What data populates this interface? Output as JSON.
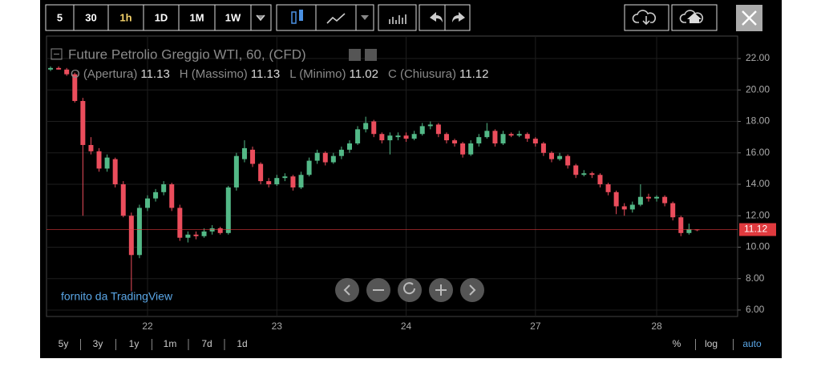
{
  "toolbar": {
    "intervals": [
      "5",
      "30",
      "1h",
      "1D",
      "1M",
      "1W"
    ]
  },
  "chart_data": {
    "type": "candlestick",
    "title": "Future Petrolio Greggio WTI, 60, (CFD)",
    "legend": [
      {
        "label": "O (Apertura)",
        "value": 11.13
      },
      {
        "label": "H (Massimo)",
        "value": 11.13
      },
      {
        "label": "L (Minimo)",
        "value": 11.02
      },
      {
        "label": "C (Chiusura)",
        "value": 11.12
      }
    ],
    "categories": [
      null,
      null,
      null,
      null,
      null,
      null,
      null,
      null,
      null,
      null,
      null,
      null,
      "22",
      null,
      null,
      null,
      null,
      null,
      null,
      null,
      null,
      null,
      null,
      null,
      null,
      null,
      null,
      null,
      "23",
      null,
      null,
      null,
      null,
      null,
      null,
      null,
      null,
      null,
      null,
      null,
      null,
      null,
      null,
      null,
      "24",
      null,
      null,
      null,
      null,
      null,
      null,
      null,
      null,
      null,
      null,
      null,
      null,
      null,
      null,
      null,
      "27",
      null,
      null,
      null,
      null,
      null,
      null,
      null,
      null,
      null,
      null,
      null,
      null,
      null,
      null,
      "28",
      null,
      null,
      null,
      null,
      null
    ],
    "open": [
      21.3,
      21.4,
      21.3,
      21.0,
      19.3,
      16.5,
      16.1,
      15.0,
      15.6,
      14.0,
      12.0,
      9.5,
      12.5,
      13.1,
      13.5,
      14.0,
      12.5,
      10.6,
      10.8,
      10.7,
      11.0,
      11.2,
      10.9,
      13.8,
      15.6,
      16.2,
      15.3,
      14.2,
      14.0,
      14.4,
      14.5,
      13.8,
      14.6,
      15.5,
      16.0,
      15.4,
      15.8,
      16.2,
      16.6,
      17.5,
      18.0,
      17.2,
      16.8,
      17.0,
      17.1,
      16.9,
      17.2,
      17.7,
      17.8,
      17.2,
      16.8,
      16.6,
      15.9,
      16.6,
      17.0,
      17.4,
      16.6,
      17.2,
      17.1,
      17.2,
      16.9,
      16.6,
      16.0,
      15.6,
      15.8,
      15.2,
      14.6,
      14.7,
      14.6,
      14.0,
      13.5,
      12.6,
      12.4,
      12.7,
      13.2,
      13.1,
      13.2,
      12.8,
      11.9,
      10.9,
      11.13
    ],
    "high": [
      21.5,
      21.5,
      21.4,
      21.1,
      19.5,
      17.0,
      16.3,
      15.9,
      15.7,
      14.2,
      12.2,
      12.7,
      13.3,
      13.7,
      14.2,
      14.1,
      12.7,
      11.0,
      11.0,
      11.2,
      11.4,
      11.3,
      13.9,
      16.0,
      16.8,
      16.4,
      15.4,
      14.4,
      14.6,
      14.7,
      14.6,
      14.8,
      15.7,
      16.2,
      16.1,
      16.0,
      16.4,
      16.8,
      17.7,
      18.3,
      18.1,
      17.3,
      17.3,
      17.3,
      17.3,
      17.4,
      17.9,
      18.0,
      17.9,
      17.3,
      16.9,
      16.7,
      16.8,
      17.2,
      17.9,
      17.5,
      17.4,
      17.3,
      17.4,
      17.3,
      17.0,
      16.7,
      16.1,
      16.0,
      15.9,
      15.3,
      14.9,
      14.8,
      14.7,
      14.1,
      13.6,
      12.8,
      12.9,
      14.0,
      13.4,
      13.3,
      13.3,
      12.9,
      12.0,
      11.5,
      11.13
    ],
    "low": [
      21.2,
      21.3,
      20.9,
      19.2,
      12.0,
      15.9,
      14.8,
      14.8,
      13.8,
      11.9,
      7.2,
      9.3,
      12.3,
      12.9,
      13.3,
      12.3,
      10.4,
      10.3,
      10.5,
      10.6,
      10.8,
      10.8,
      10.8,
      13.6,
      15.4,
      15.1,
      14.0,
      13.8,
      13.9,
      14.2,
      13.6,
      13.7,
      14.5,
      15.3,
      15.2,
      15.3,
      15.6,
      16.0,
      16.5,
      17.3,
      17.0,
      16.6,
      15.9,
      16.8,
      16.7,
      16.8,
      17.1,
      17.5,
      17.0,
      16.6,
      16.4,
      15.7,
      15.8,
      16.4,
      16.9,
      16.4,
      16.5,
      17.0,
      17.0,
      16.7,
      16.4,
      15.8,
      15.4,
      15.5,
      15.0,
      14.4,
      14.5,
      14.4,
      13.8,
      13.3,
      12.1,
      12.0,
      12.2,
      12.6,
      12.9,
      12.9,
      12.6,
      11.7,
      10.7,
      10.8,
      11.02
    ],
    "close": [
      21.4,
      21.3,
      21.0,
      19.3,
      16.5,
      16.1,
      15.0,
      15.7,
      14.0,
      12.0,
      9.5,
      12.5,
      13.1,
      13.5,
      14.0,
      12.5,
      10.6,
      10.8,
      10.7,
      11.0,
      11.2,
      10.9,
      13.8,
      15.8,
      16.3,
      15.3,
      14.2,
      14.0,
      14.4,
      14.5,
      13.8,
      14.6,
      15.5,
      16.0,
      15.4,
      15.8,
      16.2,
      16.6,
      17.5,
      17.9,
      17.2,
      16.8,
      17.1,
      17.1,
      16.9,
      17.2,
      17.7,
      17.8,
      17.2,
      16.8,
      16.6,
      15.9,
      16.6,
      17.0,
      17.4,
      16.6,
      17.2,
      17.1,
      17.2,
      16.9,
      16.6,
      16.0,
      15.6,
      15.8,
      15.2,
      14.6,
      14.7,
      14.6,
      14.0,
      13.5,
      12.6,
      12.4,
      12.7,
      13.2,
      13.1,
      13.2,
      12.8,
      11.9,
      10.9,
      11.15,
      11.12
    ],
    "up_color": "#53b987",
    "down_color": "#eb4d5c",
    "last_price": 11.12,
    "last_price_color": "#e03a3e",
    "ylim": [
      5.59,
      23.43
    ],
    "yticks": [
      {
        "value": 6,
        "label": "6.00"
      },
      {
        "value": 8,
        "label": "8.00"
      },
      {
        "value": 10,
        "label": "10.00"
      },
      {
        "value": 12,
        "label": "12.00"
      },
      {
        "value": 14,
        "label": "14.00"
      },
      {
        "value": 16,
        "label": "16.00"
      },
      {
        "value": 18,
        "label": "18.00"
      },
      {
        "value": 20,
        "label": "20.00"
      },
      {
        "value": 22,
        "label": "22.00"
      }
    ],
    "grid": true
  },
  "attribution": "fornito da TradingView",
  "footer": {
    "ranges": [
      "5y",
      "3y",
      "1y",
      "1m",
      "7d",
      "1d"
    ],
    "options": [
      "%",
      "log",
      "auto"
    ]
  }
}
